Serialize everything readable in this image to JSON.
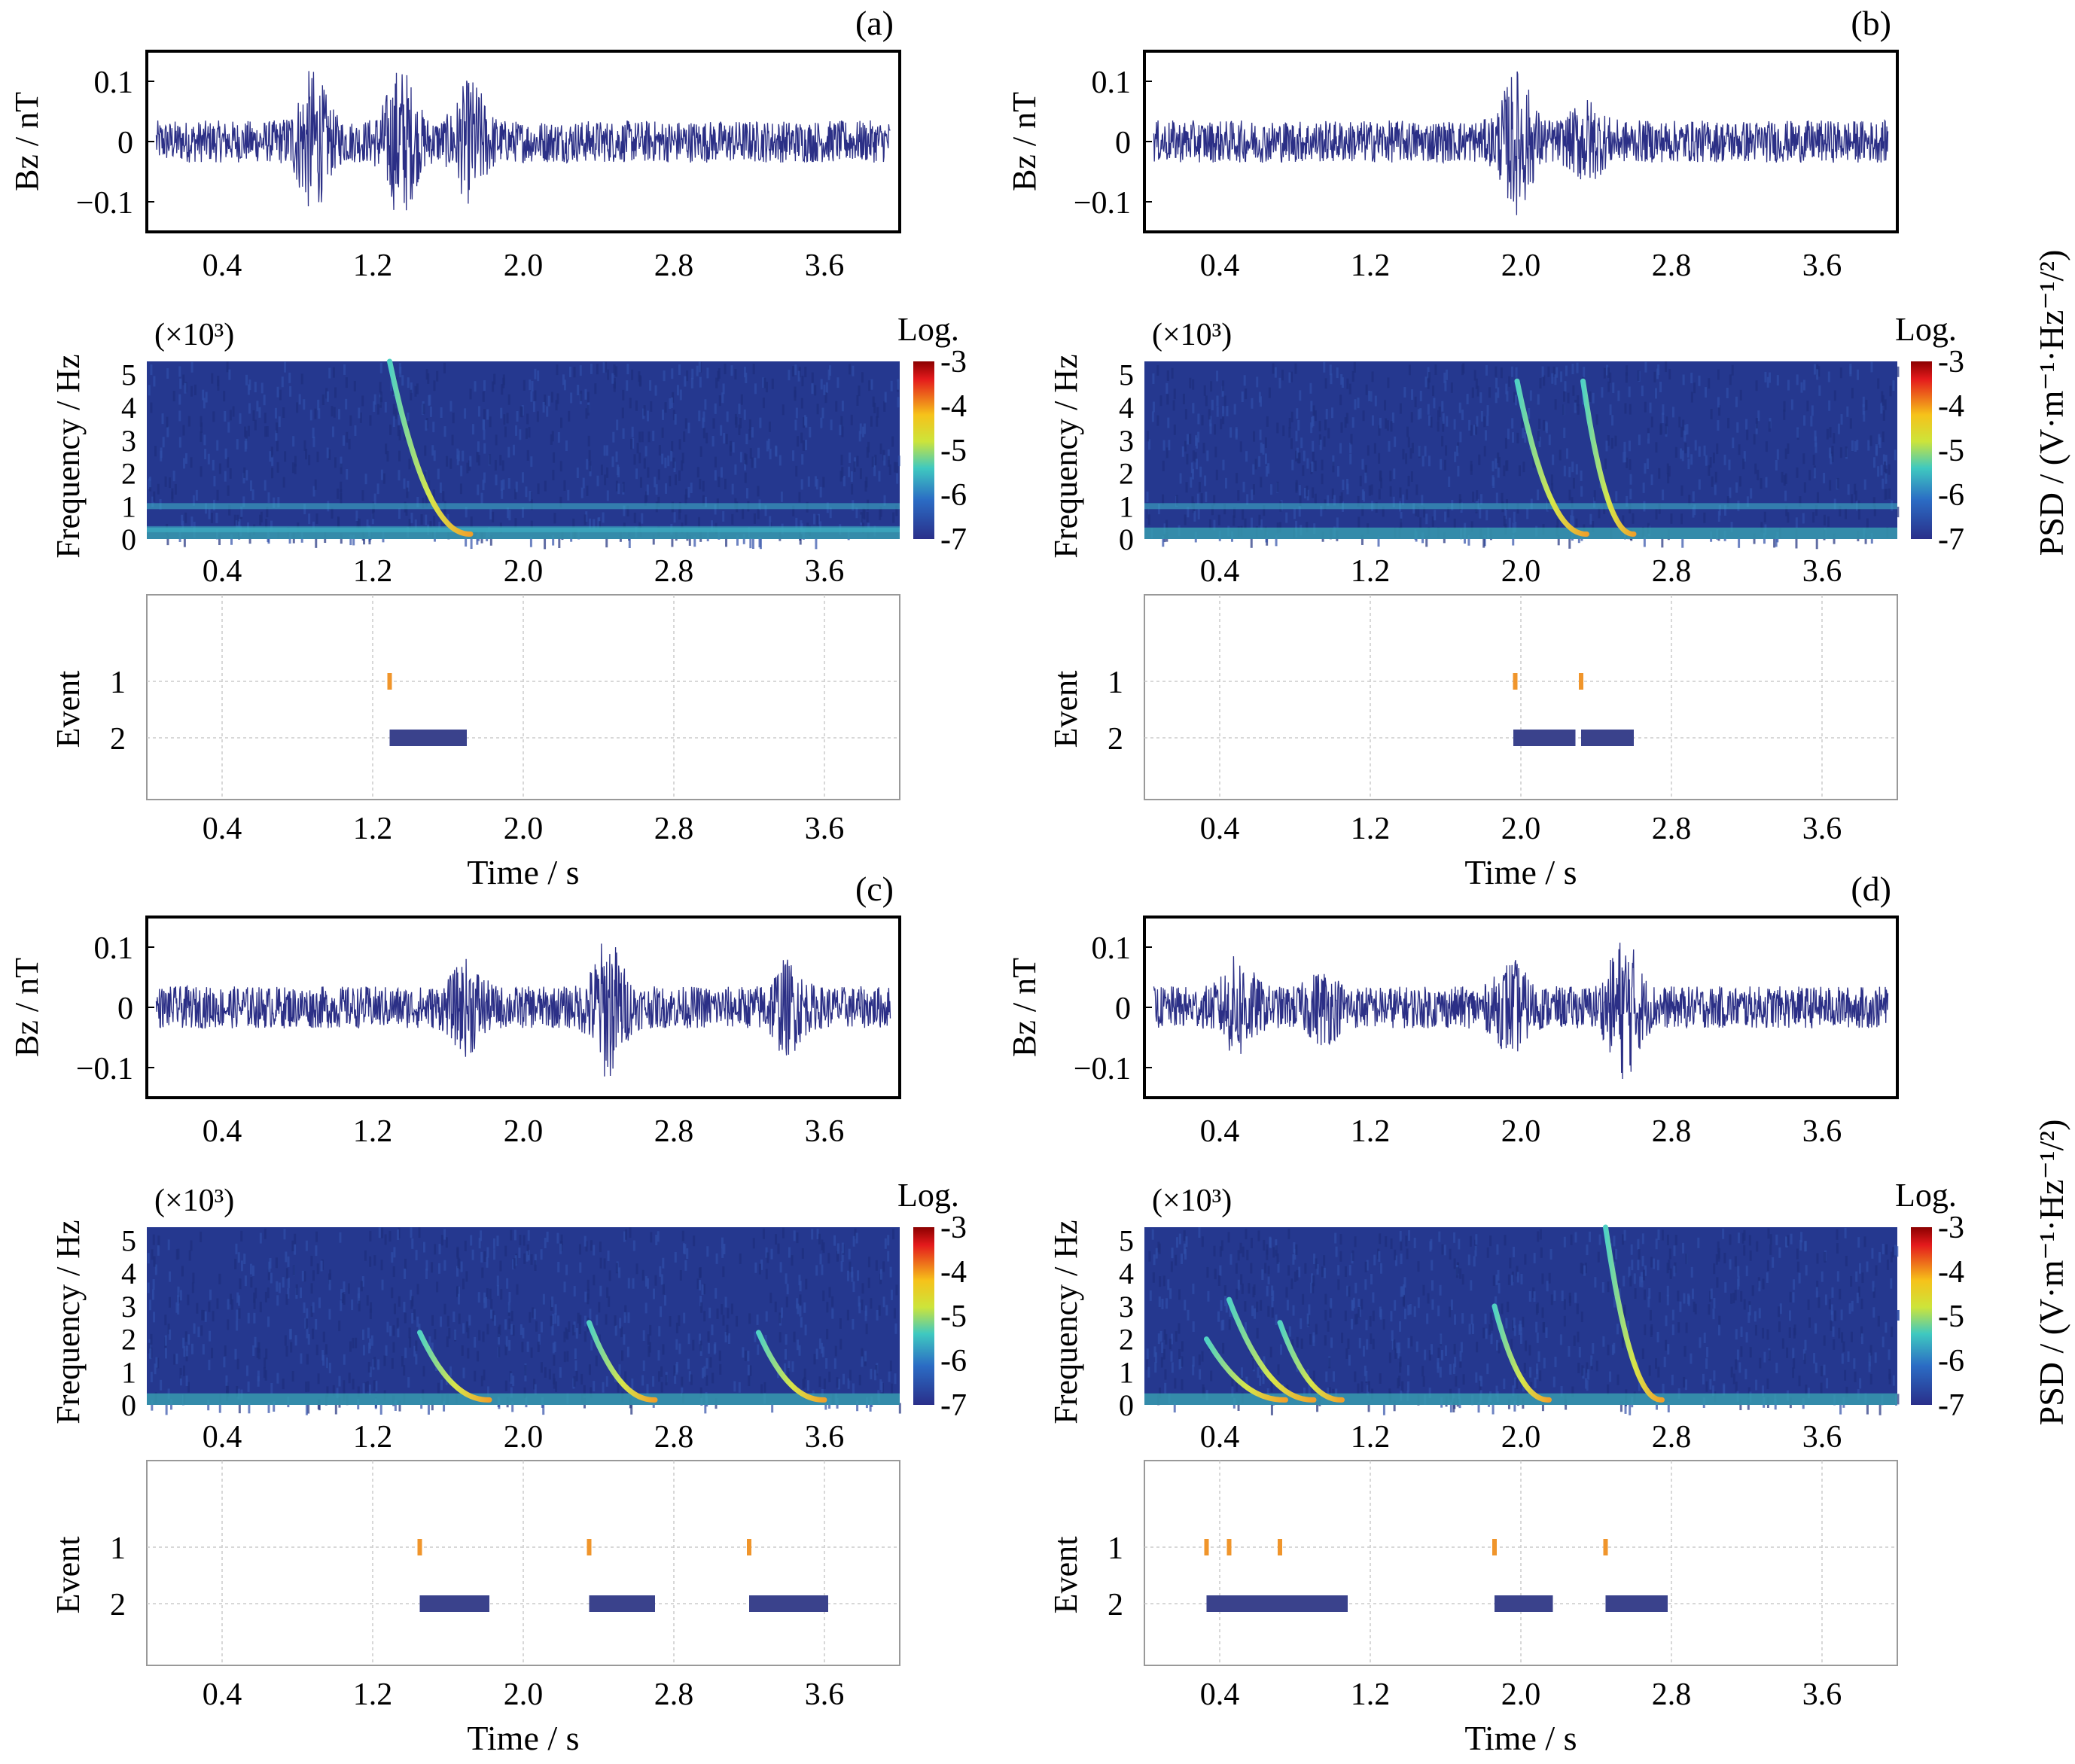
{
  "figure": {
    "colorbar_title": "Log.",
    "colorbar_ticks": [
      "-3",
      "-4",
      "-5",
      "-6",
      "-7"
    ],
    "psd_label": "PSD / (V·m⁻¹·Hz⁻¹/²)",
    "colors": {
      "trace": "#2b2f86",
      "event_mark": "#f0952b",
      "event_bar": "#3a428c",
      "spec_bg": "#25388f"
    }
  },
  "chart_data": [
    {
      "id": "a",
      "panel_label": "(a)",
      "type": "composite",
      "signal": {
        "ylabel": "B_z / nT",
        "yticks": [
          "0.1",
          "0",
          "−0.1"
        ],
        "ylim": [
          -0.15,
          0.15
        ],
        "bursts": [
          {
            "t": 0.88,
            "amp": 0.14
          },
          {
            "t": 1.35,
            "amp": 0.15
          },
          {
            "t": 1.72,
            "amp": 0.12
          }
        ]
      },
      "spectrogram": {
        "ylabel": "Frequency / Hz",
        "multiplier": "(×10³)",
        "yticks": [
          "5",
          "4",
          "3",
          "2",
          "1",
          "0"
        ],
        "ylim": [
          0,
          5.4
        ],
        "whistlers": [
          {
            "t": 1.29,
            "f_start": 5.4,
            "t_end": 1.72
          }
        ],
        "lines": [
          0.3,
          1.0
        ]
      },
      "events": {
        "ylabel": "Event",
        "yticks": [
          "1",
          "2"
        ],
        "event1": [
          1.29
        ],
        "event2": [
          [
            1.29,
            1.7
          ]
        ]
      },
      "x": {
        "xlabel": "Time / s",
        "xticks": [
          "0.4",
          "1.2",
          "2.0",
          "2.8",
          "3.6"
        ],
        "xlim": [
          0,
          4.0
        ]
      }
    },
    {
      "id": "b",
      "panel_label": "(b)",
      "type": "composite",
      "signal": {
        "ylabel": "B_z / nT",
        "yticks": [
          "0.1",
          "0",
          "−0.1"
        ],
        "ylim": [
          -0.15,
          0.15
        ],
        "bursts": [
          {
            "t": 1.98,
            "amp": 0.14
          },
          {
            "t": 2.35,
            "amp": 0.08
          }
        ]
      },
      "spectrogram": {
        "ylabel": "Frequency / Hz",
        "multiplier": "(×10³)",
        "yticks": [
          "5",
          "4",
          "3",
          "2",
          "1",
          "0"
        ],
        "ylim": [
          0,
          5.4
        ],
        "whistlers": [
          {
            "t": 1.98,
            "f_start": 4.8,
            "t_end": 2.35
          },
          {
            "t": 2.33,
            "f_start": 4.8,
            "t_end": 2.6
          }
        ],
        "lines": [
          1.0
        ]
      },
      "events": {
        "ylabel": "Event",
        "yticks": [
          "1",
          "2"
        ],
        "event1": [
          1.97,
          2.32
        ],
        "event2": [
          [
            1.96,
            2.29
          ],
          [
            2.32,
            2.6
          ]
        ]
      },
      "x": {
        "xlabel": "Time / s",
        "xticks": [
          "0.4",
          "1.2",
          "2.0",
          "2.8",
          "3.6"
        ],
        "xlim": [
          0,
          4.0
        ]
      }
    },
    {
      "id": "c",
      "panel_label": "(c)",
      "type": "composite",
      "signal": {
        "ylabel": "B_z / nT",
        "yticks": [
          "0.1",
          "0",
          "−0.1"
        ],
        "ylim": [
          -0.15,
          0.15
        ],
        "bursts": [
          {
            "t": 1.7,
            "amp": 0.09
          },
          {
            "t": 2.45,
            "amp": 0.14
          },
          {
            "t": 3.4,
            "amp": 0.09
          }
        ]
      },
      "spectrogram": {
        "ylabel": "Frequency / Hz",
        "multiplier": "(×10³)",
        "yticks": [
          "5",
          "4",
          "3",
          "2",
          "1",
          "0"
        ],
        "ylim": [
          0,
          5.4
        ],
        "whistlers": [
          {
            "t": 1.45,
            "f_start": 2.2,
            "t_end": 1.82
          },
          {
            "t": 2.35,
            "f_start": 2.5,
            "t_end": 2.7
          },
          {
            "t": 3.25,
            "f_start": 2.2,
            "t_end": 3.6
          }
        ],
        "lines": []
      },
      "events": {
        "ylabel": "Event",
        "yticks": [
          "1",
          "2"
        ],
        "event1": [
          1.45,
          2.35,
          3.2
        ],
        "event2": [
          [
            1.45,
            1.82
          ],
          [
            2.35,
            2.7
          ],
          [
            3.2,
            3.62
          ]
        ]
      },
      "x": {
        "xlabel": "Time / s",
        "xticks": [
          "0.4",
          "1.2",
          "2.0",
          "2.8",
          "3.6"
        ],
        "xlim": [
          0,
          4.0
        ]
      }
    },
    {
      "id": "d",
      "panel_label": "(d)",
      "type": "composite",
      "signal": {
        "ylabel": "B_z / nT",
        "yticks": [
          "0.1",
          "0",
          "−0.1"
        ],
        "ylim": [
          -0.15,
          0.15
        ],
        "bursts": [
          {
            "t": 0.5,
            "amp": 0.1
          },
          {
            "t": 0.95,
            "amp": 0.07
          },
          {
            "t": 1.95,
            "amp": 0.09
          },
          {
            "t": 2.55,
            "amp": 0.14
          }
        ]
      },
      "spectrogram": {
        "ylabel": "Frequency / Hz",
        "multiplier": "(×10³)",
        "yticks": [
          "5",
          "4",
          "3",
          "2",
          "1",
          "0"
        ],
        "ylim": [
          0,
          5.4
        ],
        "whistlers": [
          {
            "t": 0.33,
            "f_start": 2.0,
            "t_end": 0.75
          },
          {
            "t": 0.45,
            "f_start": 3.2,
            "t_end": 0.9
          },
          {
            "t": 0.72,
            "f_start": 2.5,
            "t_end": 1.05
          },
          {
            "t": 1.86,
            "f_start": 3.0,
            "t_end": 2.15
          },
          {
            "t": 2.45,
            "f_start": 5.4,
            "t_end": 2.75
          }
        ],
        "lines": []
      },
      "events": {
        "ylabel": "Event",
        "yticks": [
          "1",
          "2"
        ],
        "event1": [
          0.33,
          0.45,
          0.72,
          1.86,
          2.45
        ],
        "event2": [
          [
            0.33,
            1.08
          ],
          [
            1.86,
            2.17
          ],
          [
            2.45,
            2.78
          ]
        ]
      },
      "x": {
        "xlabel": "Time / s",
        "xticks": [
          "0.4",
          "1.2",
          "2.0",
          "2.8",
          "3.6"
        ],
        "xlim": [
          0,
          4.0
        ]
      }
    }
  ]
}
